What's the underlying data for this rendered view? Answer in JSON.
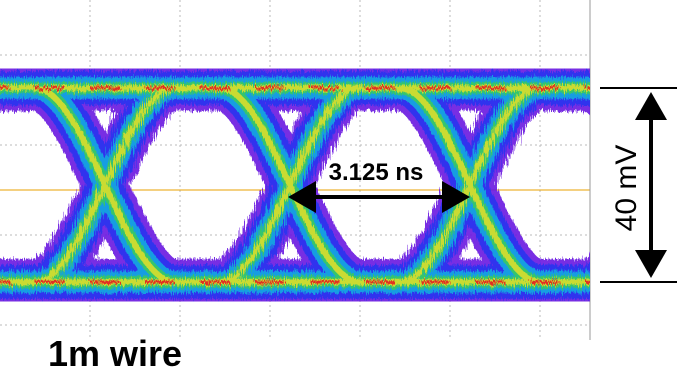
{
  "labels": {
    "period": "3.125 ns",
    "amplitude": "40 mV",
    "caption": "1m wire"
  }
}
